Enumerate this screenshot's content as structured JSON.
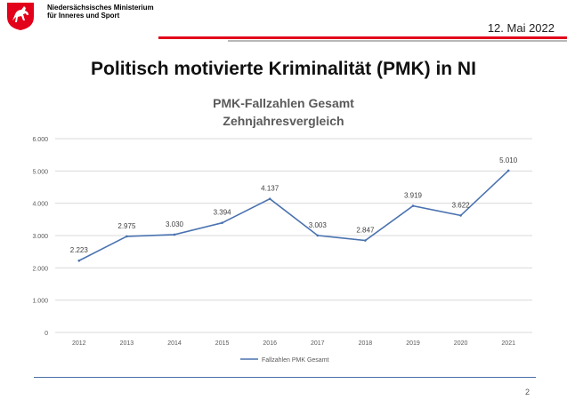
{
  "header": {
    "ministry_line1": "Niedersächsisches Ministerium",
    "ministry_line2": "für Inneres und Sport",
    "date": "12. Mai 2022",
    "logo_icon": "lower-saxony-horse-crest-icon",
    "accent_color": "#e2001a"
  },
  "slide": {
    "title": "Politisch motivierte Kriminalität (PMK) in NI",
    "page_number": "2"
  },
  "chart_data": {
    "type": "line",
    "title": "PMK-Fallzahlen Gesamt",
    "subtitle": "Zehnjahresvergleich",
    "categories": [
      "2012",
      "2013",
      "2014",
      "2015",
      "2016",
      "2017",
      "2018",
      "2019",
      "2020",
      "2021"
    ],
    "series": [
      {
        "name": "Fallzahlen PMK Gesamt",
        "values": [
          2223,
          2975,
          3030,
          3394,
          4137,
          3003,
          2847,
          3919,
          3622,
          5010
        ],
        "labels": [
          "2.223",
          "2.975",
          "3.030",
          "3.394",
          "4.137",
          "3.003",
          "2.847",
          "3.919",
          "3.622",
          "5.010"
        ],
        "color": "#4a72b0"
      }
    ],
    "y_ticks": [
      0,
      1000,
      2000,
      3000,
      4000,
      5000,
      6000
    ],
    "y_tick_labels": [
      "0",
      "1.000",
      "2.000",
      "3.000",
      "4.000",
      "5.000",
      "6.000"
    ],
    "ylim": [
      0,
      6000
    ],
    "grid": true,
    "legend_position": "bottom"
  }
}
